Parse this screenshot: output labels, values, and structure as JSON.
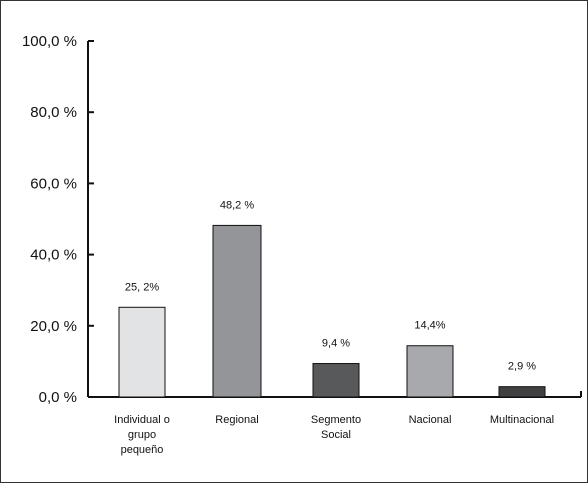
{
  "chart_data": {
    "type": "bar",
    "title": "",
    "xlabel": "",
    "ylabel": "",
    "ylim": [
      0,
      100
    ],
    "y_ticks": [
      0,
      20,
      40,
      60,
      80,
      100
    ],
    "y_tick_labels": [
      "0,0 %",
      "20,0 %",
      "40,0 %",
      "60,0 %",
      "80,0 %",
      "100,0 %"
    ],
    "grid": false,
    "categories": [
      [
        "Individual o",
        "grupo",
        "pequeño"
      ],
      [
        "Regional"
      ],
      [
        "Segmento",
        "Social"
      ],
      [
        "Nacional"
      ],
      [
        "Multinacional"
      ]
    ],
    "values": [
      25.2,
      48.2,
      9.4,
      14.4,
      2.9
    ],
    "value_labels": [
      "25,  2%",
      "48,2 %",
      "9,4 %",
      "14,4%",
      "2,9 %"
    ],
    "colors": [
      "#e2e3e4",
      "#939598",
      "#58595b",
      "#a7a9ac",
      "#414042"
    ]
  }
}
